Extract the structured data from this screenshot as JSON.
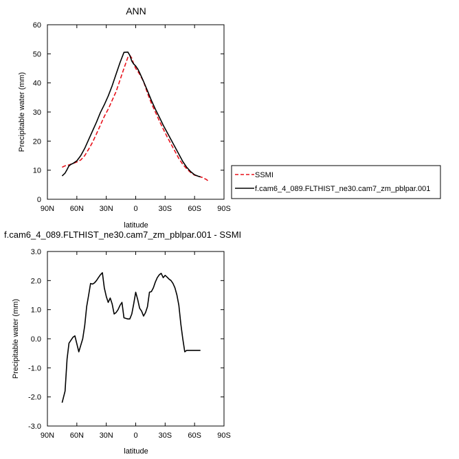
{
  "chart_data": [
    {
      "type": "line",
      "title": "ANN",
      "xlabel": "latitude",
      "ylabel": "Precipitable water (mm)",
      "xlim": [
        90,
        -90
      ],
      "ylim": [
        0,
        60
      ],
      "x_tick_values": [
        90,
        60,
        30,
        0,
        -30,
        -60,
        -90
      ],
      "x_tick_labels": [
        "90N",
        "60N",
        "30N",
        "0",
        "30S",
        "60S",
        "90S"
      ],
      "y_tick_values": [
        0,
        10,
        20,
        30,
        40,
        50,
        60
      ],
      "y_tick_labels": [
        "0",
        "10",
        "20",
        "30",
        "40",
        "50",
        "60"
      ],
      "grid": false,
      "legend_position": "right",
      "series": [
        {
          "name": "SSMI",
          "color": "#e8101a",
          "dash": "dashed",
          "x": [
            75,
            72,
            68,
            64,
            60,
            56,
            52,
            48,
            44,
            40,
            36,
            32,
            28,
            24,
            20,
            16,
            12,
            8,
            6,
            4,
            2,
            0,
            -2,
            -4,
            -8,
            -12,
            -16,
            -20,
            -24,
            -28,
            -32,
            -36,
            -40,
            -44,
            -48,
            -52,
            -56,
            -60,
            -64,
            -68,
            -72,
            -75
          ],
          "y": [
            11,
            11.5,
            11.8,
            12.3,
            12.8,
            13.5,
            15,
            17.2,
            19.6,
            22.5,
            25.5,
            28.5,
            31,
            34,
            37,
            41,
            45,
            48.8,
            49.5,
            48.5,
            46.5,
            45,
            44,
            43,
            40.5,
            36.5,
            33,
            30,
            27,
            24.2,
            21.5,
            19,
            16.5,
            14,
            12,
            10.5,
            9.2,
            8.3,
            7.9,
            7.5,
            6.8,
            6
          ]
        },
        {
          "name": "f.cam6_4_089.FLTHIST_ne30.cam7_zm_pblpar.001",
          "color": "#000000",
          "dash": "solid",
          "x": [
            75,
            72,
            70,
            68,
            66,
            64,
            60,
            56,
            52,
            48,
            44,
            40,
            36,
            32,
            28,
            24,
            20,
            16,
            12,
            8,
            6,
            4,
            2,
            0,
            -2,
            -4,
            -8,
            -12,
            -16,
            -20,
            -24,
            -28,
            -32,
            -36,
            -40,
            -44,
            -48,
            -52,
            -56,
            -60,
            -64,
            -66
          ],
          "y": [
            8,
            9,
            10.2,
            11.5,
            12,
            12.3,
            13.2,
            15,
            17.5,
            20.5,
            23.5,
            26.5,
            29.8,
            32.5,
            35.5,
            39,
            43,
            47,
            50.5,
            50.6,
            49.5,
            47.5,
            46.5,
            45.8,
            44.8,
            43.5,
            40.5,
            37.3,
            34,
            31,
            28.3,
            25.5,
            23,
            20.5,
            18,
            15.5,
            13,
            11,
            9.5,
            8.4,
            7.9,
            7.7
          ]
        }
      ]
    },
    {
      "type": "line",
      "title": "f.cam6_4_089.FLTHIST_ne30.cam7_zm_pblpar.001 - SSMI",
      "xlabel": "latitude",
      "ylabel": "Precipitable water (mm)",
      "xlim": [
        90,
        -90
      ],
      "ylim": [
        -3,
        3
      ],
      "x_tick_values": [
        90,
        60,
        30,
        0,
        -30,
        -60,
        -90
      ],
      "x_tick_labels": [
        "90N",
        "60N",
        "30N",
        "0",
        "30S",
        "60S",
        "90S"
      ],
      "y_tick_values": [
        3,
        2,
        1,
        0,
        -1,
        -2,
        -3
      ],
      "y_tick_labels": [
        "3.0",
        "2.0",
        "1.0",
        "0.0",
        "-1.0",
        "-2.0",
        "-3.0"
      ],
      "grid": false,
      "series": [
        {
          "color": "#000000",
          "dash": "solid",
          "x": [
            75,
            72,
            70,
            68,
            66,
            64,
            62,
            58,
            54,
            52,
            50,
            48,
            46,
            44,
            42,
            40,
            38,
            36,
            34,
            32,
            30,
            28,
            26,
            24,
            22,
            20,
            18,
            16,
            14,
            12,
            10,
            8,
            6,
            4,
            2,
            0,
            -2,
            -4,
            -6,
            -8,
            -10,
            -12,
            -14,
            -16,
            -18,
            -20,
            -22,
            -24,
            -26,
            -28,
            -30,
            -32,
            -34,
            -36,
            -38,
            -40,
            -42,
            -44,
            -46,
            -48,
            -50,
            -52,
            -54,
            -56,
            -58,
            -60,
            -62,
            -64,
            -66
          ],
          "y": [
            -2.2,
            -1.8,
            -0.7,
            -0.15,
            -0.05,
            0.05,
            0.1,
            -0.45,
            0,
            0.45,
            1.1,
            1.5,
            1.9,
            1.88,
            1.92,
            2,
            2.1,
            2.2,
            2.27,
            1.75,
            1.45,
            1.25,
            1.4,
            1.2,
            0.85,
            0.9,
            1.0,
            1.15,
            1.25,
            0.72,
            0.7,
            0.68,
            0.68,
            0.85,
            1.2,
            1.6,
            1.35,
            1.05,
            0.95,
            0.78,
            0.9,
            1.1,
            1.6,
            1.62,
            1.75,
            1.95,
            2.1,
            2.2,
            2.25,
            2.1,
            2.18,
            2.12,
            2.05,
            2.0,
            1.9,
            1.75,
            1.5,
            1.15,
            0.5,
            0,
            -0.45,
            -0.4,
            -0.4,
            -0.4,
            -0.4,
            -0.4,
            -0.4,
            -0.4,
            -0.4
          ]
        }
      ]
    }
  ]
}
